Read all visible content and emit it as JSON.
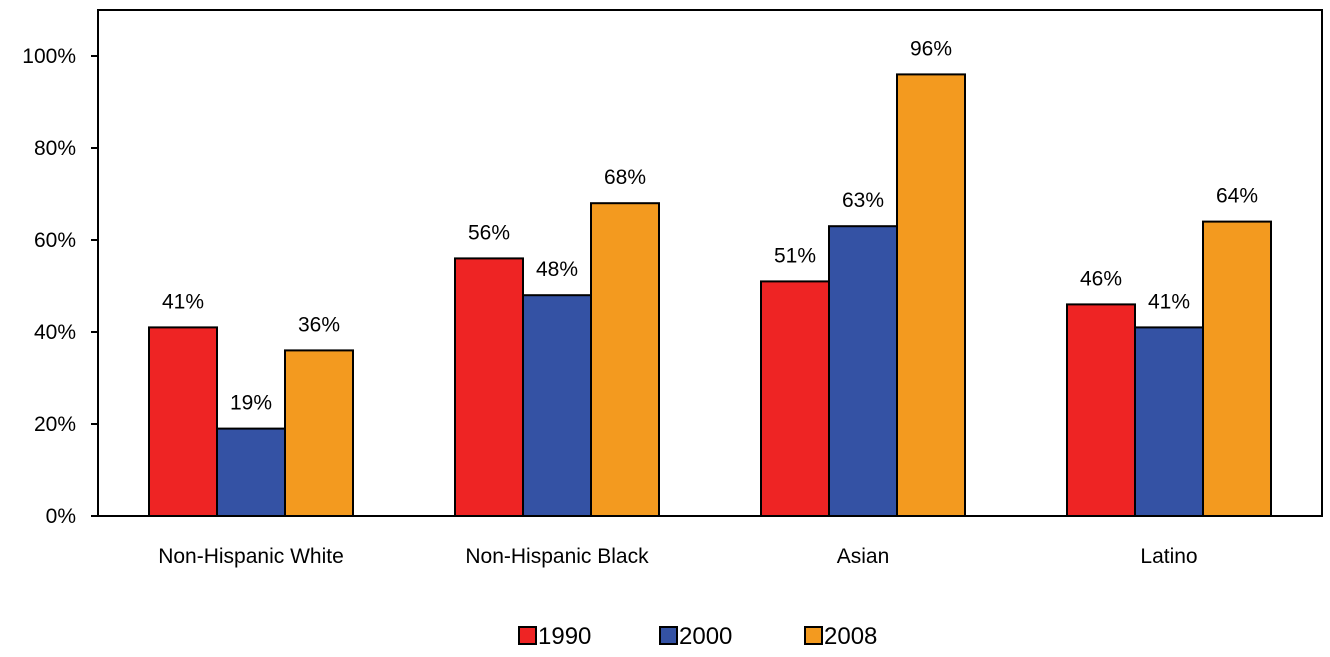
{
  "chart_data": {
    "type": "bar",
    "title": "",
    "xlabel": "",
    "ylabel": "",
    "categories": [
      "Non-Hispanic White",
      "Non-Hispanic Black",
      "Asian",
      "Latino"
    ],
    "series": [
      {
        "name": "1990",
        "color": "#ee2424",
        "values": [
          41,
          56,
          51,
          46
        ],
        "labels": [
          "41%",
          "56%",
          "51%",
          "46%"
        ]
      },
      {
        "name": "2000",
        "color": "#3452a4",
        "values": [
          19,
          48,
          63,
          41
        ],
        "labels": [
          "19%",
          "48%",
          "63%",
          "41%"
        ]
      },
      {
        "name": "2008",
        "color": "#f39a1f",
        "values": [
          36,
          68,
          96,
          64
        ],
        "labels": [
          "36%",
          "68%",
          "96%",
          "64%"
        ]
      }
    ],
    "ylim": [
      0,
      100
    ],
    "ymax_visible": 110,
    "yticks": [
      0,
      20,
      40,
      60,
      80,
      100
    ],
    "ytick_labels": [
      "0%",
      "20%",
      "40%",
      "60%",
      "80%",
      "100%"
    ],
    "grid": false,
    "legend_position": "bottom"
  }
}
